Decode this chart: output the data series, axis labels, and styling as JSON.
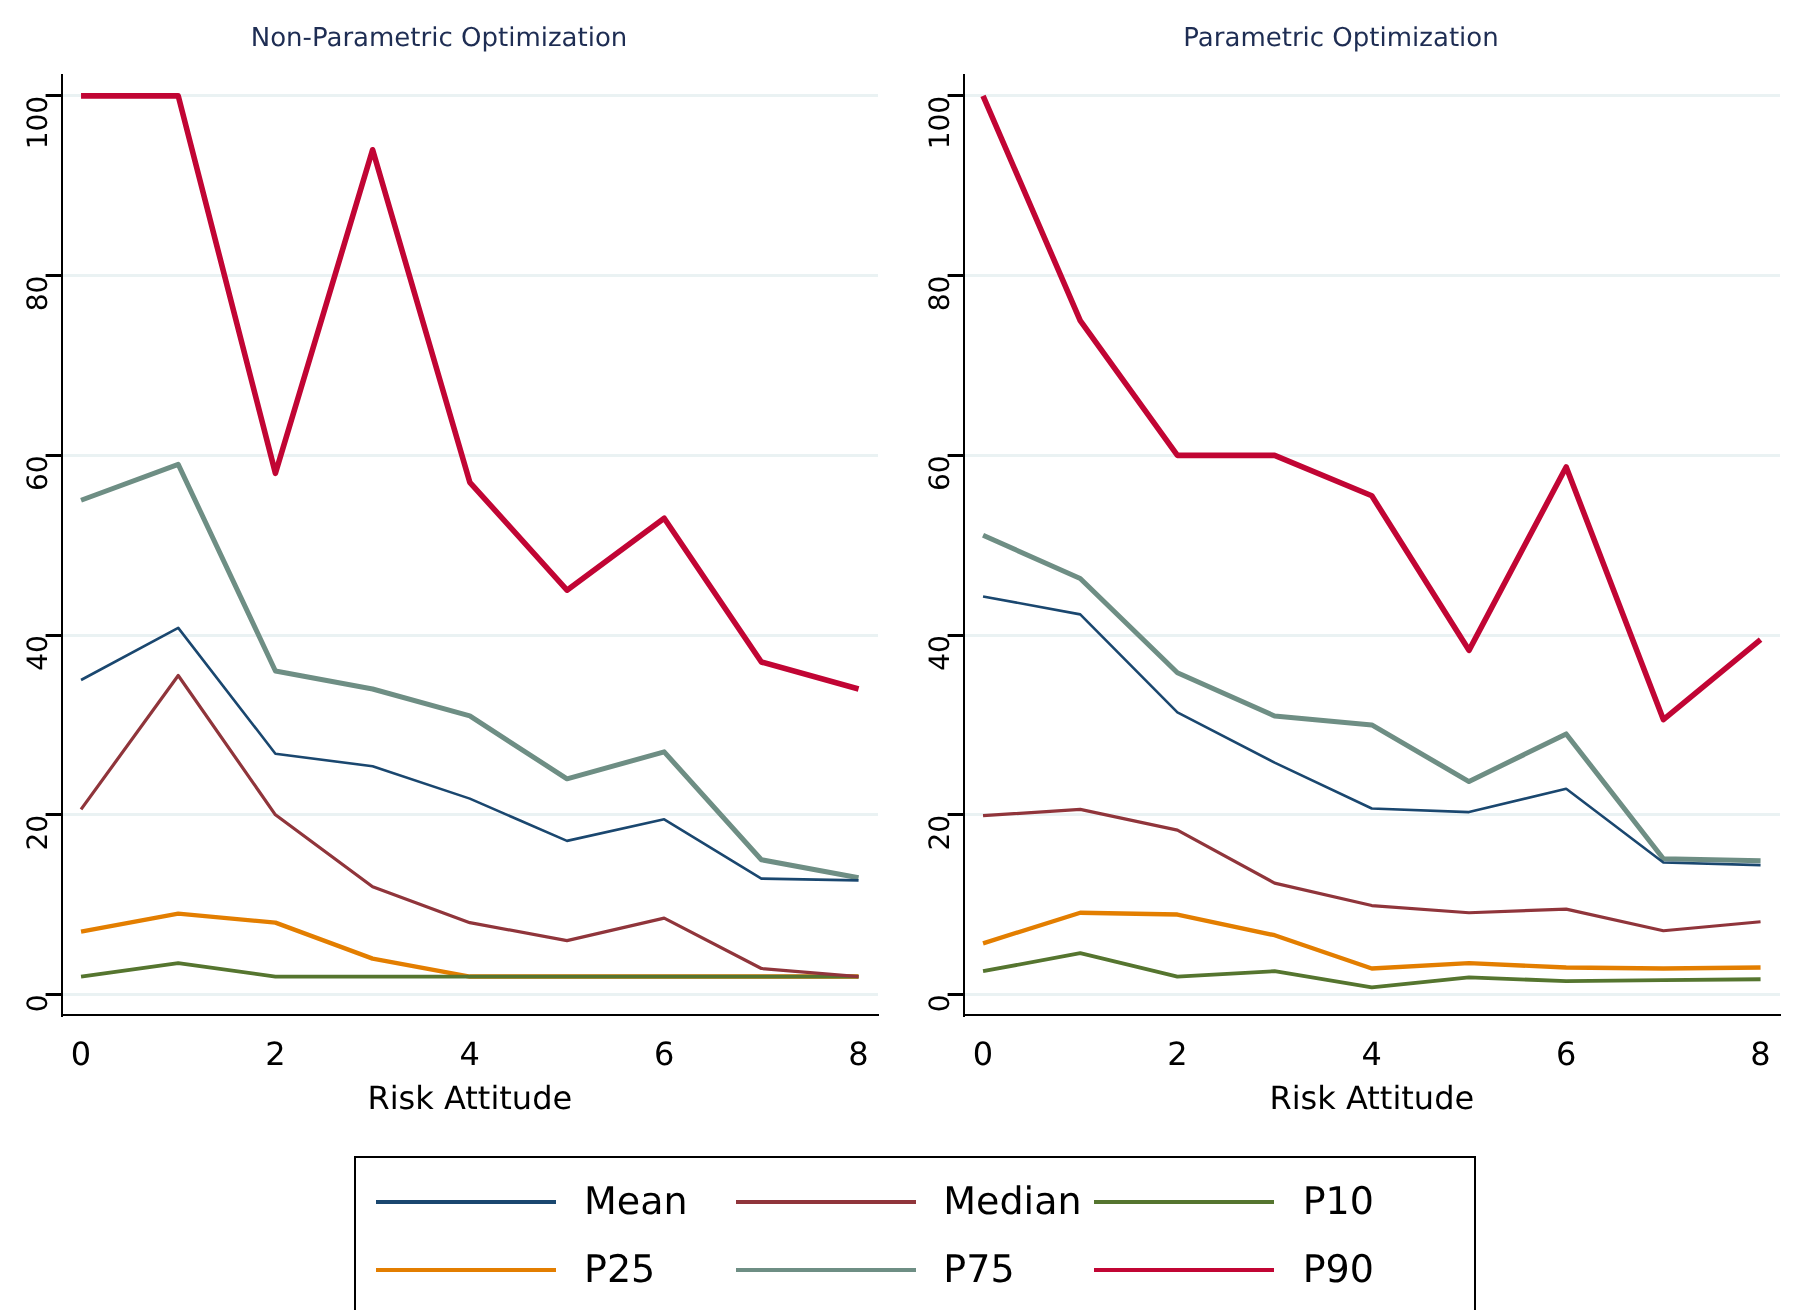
{
  "chart_data": [
    {
      "type": "line",
      "title": "Non-Parametric Optimization",
      "xlabel": "Risk Attitude",
      "x": [
        0,
        1,
        2,
        3,
        4,
        5,
        6,
        7,
        8
      ],
      "xlim": [
        -0.2,
        8.2
      ],
      "xticks": [
        0,
        2,
        4,
        6,
        8
      ],
      "ylim": [
        -2.3,
        102.3
      ],
      "yticks": [
        0,
        20,
        40,
        60,
        80,
        100
      ],
      "grid": "y",
      "legend": "bottom",
      "series": [
        {
          "name": "Mean",
          "color": "#1a476f",
          "values": [
            35,
            40.8,
            26.8,
            25.4,
            21.8,
            17.1,
            19.5,
            12.9,
            12.7
          ]
        },
        {
          "name": "Median",
          "color": "#90353b",
          "values": [
            20.6,
            35.5,
            20,
            12,
            8,
            6,
            8.5,
            2.9,
            2
          ]
        },
        {
          "name": "P10",
          "color": "#55752f",
          "values": [
            2,
            3.5,
            2,
            2,
            2,
            2,
            2,
            2,
            2
          ]
        },
        {
          "name": "P25",
          "color": "#e37e00",
          "values": [
            7,
            9,
            8,
            4,
            2,
            2,
            2,
            2,
            2
          ]
        },
        {
          "name": "P75",
          "color": "#6e8e84",
          "values": [
            55,
            59,
            36,
            34,
            31,
            24,
            27,
            15,
            13
          ]
        },
        {
          "name": "P90",
          "color": "#c10534",
          "values": [
            100,
            100,
            58,
            94,
            57,
            45,
            53,
            37,
            34
          ]
        }
      ]
    },
    {
      "type": "line",
      "title": "Parametric Optimization",
      "xlabel": "Risk Attitude",
      "x": [
        0,
        1,
        2,
        3,
        4,
        5,
        6,
        7,
        8
      ],
      "xlim": [
        -0.2,
        8.2
      ],
      "xticks": [
        0,
        2,
        4,
        6,
        8
      ],
      "ylim": [
        -2.3,
        102.3
      ],
      "yticks": [
        0,
        20,
        40,
        60,
        80,
        100
      ],
      "grid": "y",
      "series": [
        {
          "color": "#1a476f",
          "values": [
            44.3,
            42.3,
            31.4,
            25.8,
            20.7,
            20.3,
            22.9,
            14.7,
            14.4
          ]
        },
        {
          "color": "#90353b",
          "values": [
            19.9,
            20.6,
            18.3,
            12.4,
            9.9,
            9.1,
            9.5,
            7.1,
            8.1
          ]
        },
        {
          "color": "#55752f",
          "values": [
            2.6,
            4.6,
            2,
            2.6,
            0.8,
            1.9,
            1.5,
            1.6,
            1.7
          ]
        },
        {
          "color": "#e37e00",
          "values": [
            5.7,
            9.1,
            8.9,
            6.6,
            2.9,
            3.5,
            3,
            2.9,
            3
          ]
        },
        {
          "color": "#6e8e84",
          "values": [
            51.1,
            46.3,
            35.8,
            31,
            30,
            23.7,
            29,
            15.1,
            14.9
          ]
        },
        {
          "color": "#c10534",
          "values": [
            100,
            75,
            60,
            60,
            55.5,
            38.3,
            58.7,
            30.6,
            39.5
          ]
        }
      ]
    }
  ]
}
